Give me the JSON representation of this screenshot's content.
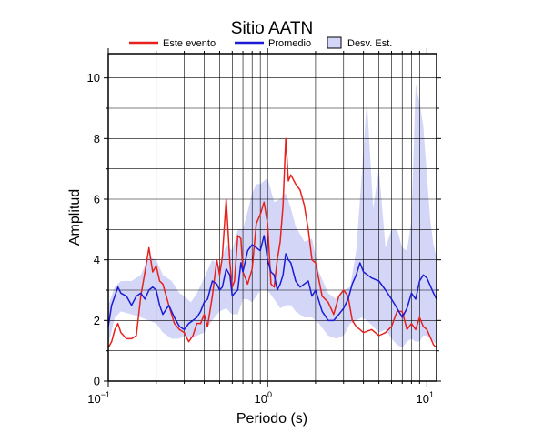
{
  "chart_data": {
    "type": "line",
    "title": "Sitio AATN",
    "xlabel": "Periodo (s)",
    "ylabel": "Amplitud",
    "x_scale": "log",
    "xlim": [
      0.1,
      11.5
    ],
    "ylim": [
      0,
      10.8
    ],
    "grid": true,
    "legend_position": "top",
    "x_ticks": [
      {
        "value": 0.1,
        "base": "10",
        "exp": "−1"
      },
      {
        "value": 1,
        "label": "10",
        "exp": "0"
      },
      {
        "value": 10,
        "base": "10",
        "exp": "1"
      }
    ],
    "y_ticks": [
      0,
      2,
      4,
      6,
      8,
      10
    ],
    "legend": [
      {
        "label": "Este evento",
        "color": "#e8211c",
        "kind": "line"
      },
      {
        "label": "Promedio",
        "color": "#1c1cd6",
        "kind": "line"
      },
      {
        "label": "Desv. Est.",
        "color": "#d3d6f7",
        "kind": "area"
      }
    ],
    "series": [
      {
        "name": "Este evento",
        "color": "#e8211c",
        "x": [
          0.1,
          0.105,
          0.11,
          0.115,
          0.12,
          0.13,
          0.14,
          0.15,
          0.16,
          0.17,
          0.18,
          0.19,
          0.2,
          0.21,
          0.22,
          0.24,
          0.26,
          0.28,
          0.3,
          0.32,
          0.34,
          0.36,
          0.38,
          0.4,
          0.42,
          0.45,
          0.48,
          0.5,
          0.52,
          0.55,
          0.58,
          0.6,
          0.62,
          0.65,
          0.68,
          0.7,
          0.75,
          0.8,
          0.85,
          0.9,
          0.95,
          1.0,
          1.05,
          1.1,
          1.15,
          1.2,
          1.25,
          1.3,
          1.35,
          1.4,
          1.5,
          1.6,
          1.7,
          1.8,
          1.9,
          2.0,
          2.2,
          2.4,
          2.6,
          2.8,
          3.0,
          3.2,
          3.4,
          3.6,
          3.8,
          4.0,
          4.5,
          5.0,
          5.5,
          6.0,
          6.5,
          7.0,
          7.5,
          8.0,
          8.5,
          9.0,
          9.5,
          10.0,
          11.0,
          11.5
        ],
        "values": [
          1.1,
          1.3,
          1.7,
          1.9,
          1.6,
          1.4,
          1.4,
          1.5,
          2.8,
          3.6,
          4.4,
          3.6,
          3.8,
          3.3,
          3.2,
          2.5,
          1.9,
          1.7,
          1.6,
          1.3,
          1.5,
          1.9,
          1.9,
          2.2,
          1.8,
          2.8,
          4.0,
          3.5,
          4.1,
          6.0,
          3.9,
          3.1,
          3.3,
          4.8,
          4.7,
          3.6,
          3.2,
          3.7,
          5.2,
          5.5,
          5.9,
          5.2,
          3.2,
          3.1,
          4.0,
          4.6,
          5.8,
          8.0,
          6.6,
          6.8,
          6.5,
          6.3,
          5.8,
          5.0,
          4.0,
          3.9,
          2.8,
          2.6,
          2.2,
          2.8,
          3.0,
          2.8,
          2.0,
          1.8,
          1.7,
          1.6,
          1.7,
          1.5,
          1.6,
          1.8,
          2.3,
          2.3,
          1.7,
          1.9,
          1.7,
          2.1,
          1.8,
          1.7,
          1.2,
          1.1
        ]
      },
      {
        "name": "Promedio",
        "color": "#1c1cd6",
        "x": [
          0.1,
          0.105,
          0.11,
          0.115,
          0.12,
          0.13,
          0.14,
          0.15,
          0.16,
          0.17,
          0.18,
          0.19,
          0.2,
          0.21,
          0.22,
          0.24,
          0.26,
          0.28,
          0.3,
          0.32,
          0.34,
          0.36,
          0.38,
          0.4,
          0.42,
          0.45,
          0.48,
          0.5,
          0.52,
          0.55,
          0.58,
          0.6,
          0.62,
          0.65,
          0.68,
          0.7,
          0.75,
          0.8,
          0.85,
          0.9,
          0.95,
          1.0,
          1.05,
          1.1,
          1.15,
          1.2,
          1.25,
          1.3,
          1.35,
          1.4,
          1.5,
          1.6,
          1.7,
          1.8,
          1.9,
          2.0,
          2.2,
          2.4,
          2.6,
          2.8,
          3.0,
          3.2,
          3.4,
          3.6,
          3.8,
          4.0,
          4.5,
          5.0,
          5.5,
          6.0,
          6.5,
          7.0,
          7.5,
          8.0,
          8.5,
          9.0,
          9.5,
          10.0,
          11.0,
          11.5
        ],
        "values": [
          1.8,
          2.5,
          2.8,
          3.1,
          2.9,
          2.8,
          2.5,
          2.8,
          2.9,
          2.7,
          3.0,
          3.1,
          3.0,
          2.5,
          2.2,
          2.5,
          2.1,
          1.8,
          1.7,
          1.9,
          2.0,
          2.1,
          2.3,
          2.6,
          2.7,
          3.3,
          3.2,
          3.0,
          3.1,
          3.7,
          3.5,
          2.8,
          2.9,
          3.0,
          3.9,
          3.6,
          4.3,
          4.5,
          4.4,
          4.3,
          4.8,
          4.0,
          3.6,
          3.5,
          3.0,
          3.2,
          3.5,
          4.2,
          4.0,
          3.9,
          3.3,
          3.1,
          3.2,
          3.3,
          2.8,
          3.0,
          2.3,
          2.0,
          2.0,
          2.2,
          2.4,
          2.7,
          3.2,
          3.5,
          3.9,
          3.6,
          3.4,
          3.3,
          3.0,
          2.7,
          2.4,
          2.1,
          2.4,
          2.9,
          2.7,
          3.3,
          3.5,
          3.4,
          2.9,
          2.7
        ]
      }
    ],
    "band": {
      "name": "Desv. Est.",
      "color": "#d3d6f7",
      "x": [
        0.1,
        0.11,
        0.12,
        0.14,
        0.16,
        0.18,
        0.2,
        0.22,
        0.25,
        0.28,
        0.3,
        0.33,
        0.36,
        0.4,
        0.45,
        0.5,
        0.55,
        0.6,
        0.65,
        0.7,
        0.75,
        0.8,
        0.85,
        0.9,
        1.0,
        1.1,
        1.2,
        1.3,
        1.4,
        1.5,
        1.7,
        1.9,
        2.1,
        2.4,
        2.7,
        3.0,
        3.3,
        3.6,
        3.9,
        4.2,
        4.6,
        5.0,
        5.5,
        6.0,
        6.5,
        7.0,
        7.5,
        8.0,
        8.5,
        9.0,
        9.5,
        10.0,
        10.5,
        11.0,
        11.5
      ],
      "lower": [
        1.2,
        2.1,
        2.3,
        2.2,
        2.1,
        2.0,
        1.9,
        1.6,
        1.4,
        1.4,
        1.5,
        1.4,
        1.5,
        1.6,
        2.0,
        2.3,
        2.4,
        2.2,
        2.2,
        2.7,
        2.7,
        2.6,
        2.8,
        3.0,
        3.0,
        2.7,
        2.4,
        2.5,
        2.5,
        2.3,
        2.1,
        2.1,
        1.9,
        1.5,
        1.4,
        1.5,
        1.9,
        2.0,
        2.1,
        2.0,
        1.8,
        1.6,
        1.7,
        1.4,
        1.2,
        1.1,
        1.3,
        1.4,
        1.3,
        1.3,
        1.5,
        1.5,
        1.4,
        1.3,
        1.2
      ],
      "upper": [
        2.5,
        3.1,
        3.3,
        3.3,
        3.5,
        4.1,
        4.0,
        3.5,
        3.3,
        2.9,
        2.8,
        2.6,
        2.9,
        3.4,
        4.0,
        3.8,
        4.5,
        4.3,
        5.0,
        5.0,
        5.6,
        6.2,
        6.5,
        6.5,
        6.7,
        5.9,
        6.0,
        6.2,
        5.7,
        5.1,
        4.6,
        4.7,
        3.6,
        2.9,
        2.7,
        3.0,
        3.1,
        4.3,
        6.8,
        9.3,
        5.7,
        7.0,
        4.4,
        5.0,
        5.0,
        4.4,
        4.3,
        5.3,
        9.8,
        9.2,
        8.4,
        6.8,
        5.3,
        4.5,
        4.1
      ]
    }
  }
}
